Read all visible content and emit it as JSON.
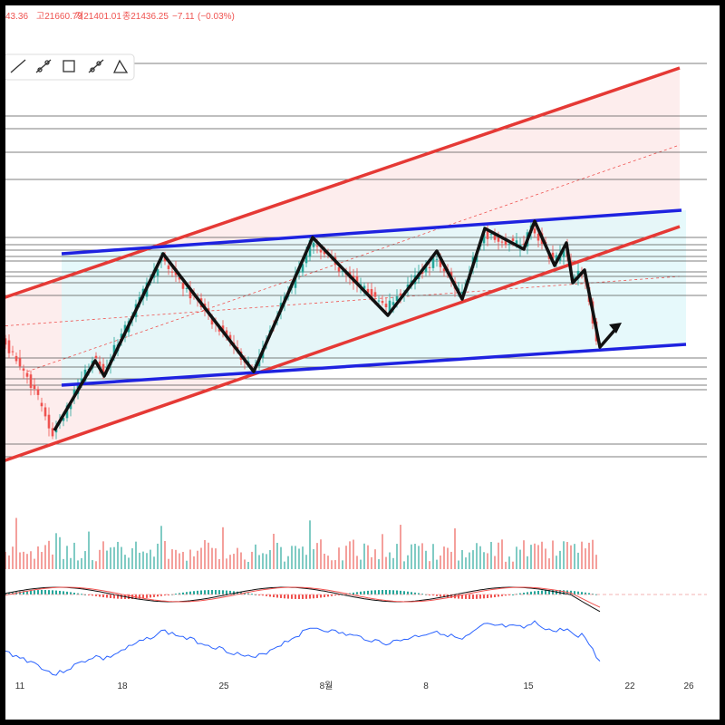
{
  "header": {
    "ohlc": [
      "43.36",
      "고21660.73",
      "저21401.01",
      "종21436.25",
      "−7.11",
      "(−0.03%)"
    ]
  },
  "x_axis": {
    "labels": [
      "11",
      "18",
      "25",
      "8월",
      "8",
      "15",
      "22",
      "26"
    ]
  }
}
